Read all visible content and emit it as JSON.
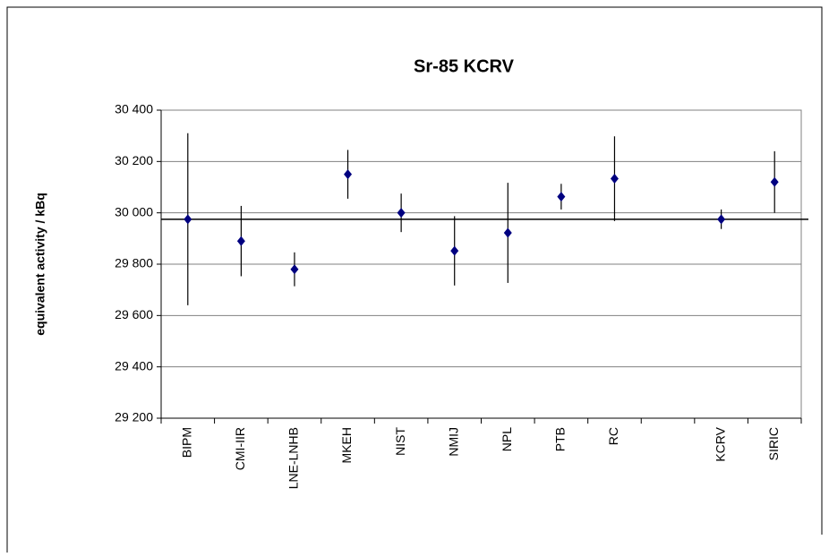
{
  "chart_data": {
    "type": "errorbar",
    "title": "Sr-85 KCRV",
    "y_label": "equivalent activity / kBq",
    "categories": [
      "BIPM",
      "CMI-IIR",
      "LNE-LNHB",
      "MKEH",
      "NIST",
      "NMIJ",
      "NPL",
      "PTB",
      "RC",
      null,
      "KCRV",
      "SIRIC"
    ],
    "series": [
      {
        "color": "#000080",
        "values": [
          29975,
          29890,
          29780,
          30150,
          30000,
          29852,
          29922,
          30063,
          30133,
          null,
          29975,
          30120
        ],
        "errors": [
          335,
          137,
          66,
          95,
          75,
          135,
          195,
          50,
          165,
          null,
          38,
          120
        ]
      }
    ],
    "reference_line": 29975,
    "ylim": [
      29200,
      30400
    ],
    "yticks": [
      {
        "value": 29200,
        "label": "29 200"
      },
      {
        "value": 29400,
        "label": "29 400"
      },
      {
        "value": 29600,
        "label": "29 600"
      },
      {
        "value": 29800,
        "label": "29 800"
      },
      {
        "value": 30000,
        "label": "30 000"
      },
      {
        "value": 30200,
        "label": "30 200"
      },
      {
        "value": 30400,
        "label": "30 400"
      }
    ],
    "grid": true
  }
}
